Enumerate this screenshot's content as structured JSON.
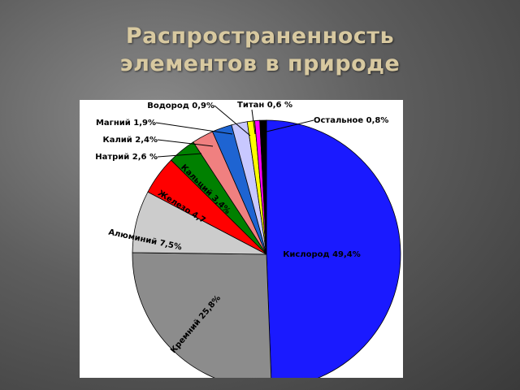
{
  "title": {
    "line1": "Распространенность",
    "line2": "элементов в природе"
  },
  "chart_data": {
    "type": "pie",
    "title": "",
    "start_angle_deg": 0,
    "direction": "clockwise",
    "slices": [
      {
        "label": "Кислород 49,4%",
        "value": 49.4,
        "color": "#1a1aff"
      },
      {
        "label": "Кремний 25,8%",
        "value": 25.8,
        "color": "#8c8c8c"
      },
      {
        "label": "Алюминий 7,5%",
        "value": 7.5,
        "color": "#cccccc"
      },
      {
        "label": "Железо 4,7",
        "value": 4.7,
        "color": "#ff0000"
      },
      {
        "label": "Кальций 3,4%",
        "value": 3.4,
        "color": "#008000"
      },
      {
        "label": "Натрий 2,6 %",
        "value": 2.6,
        "color": "#f08080"
      },
      {
        "label": "Калий 2,4%",
        "value": 2.4,
        "color": "#1e64d2"
      },
      {
        "label": "Магний 1,9%",
        "value": 1.9,
        "color": "#c8c8ff"
      },
      {
        "label": "Водород 0,9%",
        "value": 0.9,
        "color": "#ffff00"
      },
      {
        "label": "Титан 0,6 %",
        "value": 0.6,
        "color": "#ff00ff"
      },
      {
        "label": "Остальное 0,8%",
        "value": 0.8,
        "color": "#000000"
      }
    ]
  }
}
